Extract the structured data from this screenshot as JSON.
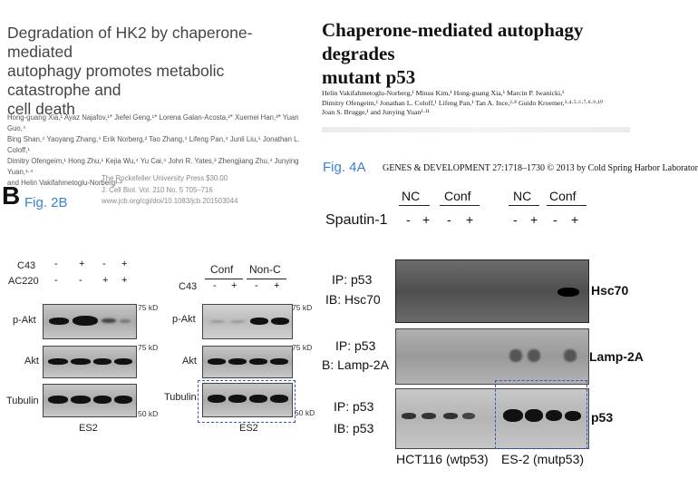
{
  "left_paper": {
    "title_lines": [
      "Degradation of HK2 by chaperone-mediated",
      "autophagy promotes metabolic catastrophe and",
      "cell death"
    ],
    "author_lines": [
      "Hong-guang Xia,¹ Ayaz Najafov,¹* Jiefei Geng,¹* Lorena Galan-Acosta,²* Xuemei Han,³* Yuan Guo,⁴",
      "Bing Shan,⁴ Yaoyang Zhang,⁴ Erik Norberg,² Tao Zhang,⁴ Lifeng Pan,⁴ Junli Liu,⁵ Jonathan L. Coloff,¹",
      "Dimitry Ofengeim,¹ Hong Zhu,¹ Kejia Wu,⁴ Yu Cai,⁴ John R. Yates,³ Zhengjiang Zhu,⁴ Junying Yuan,¹·⁴",
      "and Helin Vakifahmetoglu-Norberg¹·²"
    ],
    "press_lines": [
      "The Rockefeller University Press  $30.00",
      "J. Cell Biol. Vol. 210 No. 5   705–716",
      "www.jcb.org/cgi/doi/10.1083/jcb.201503044"
    ]
  },
  "right_paper": {
    "title_lines": [
      "Chaperone-mediated autophagy degrades",
      "mutant p53"
    ],
    "author_lines": [
      "Helin Vakifahmetoglu-Norberg,¹ Minsu Kim,¹ Hong-guang Xia,¹ Marcin P. Iwanicki,¹",
      "Dimitry Ofengeim,¹ Jonathan L. Coloff,¹ Lifeng Pan,¹ Tan A. Ince,²·⁸ Guido Kroemer,³·⁴·⁵·⁶·⁷·⁸·⁹·¹⁰",
      "Joan S. Brugge,¹ and Junying Yuan¹·¹¹"
    ],
    "journal": "GENES & DEVELOPMENT 27:1718–1730 © 2013 by Cold Spring Harbor Laborator"
  },
  "panel_b": {
    "letter": "B",
    "fig_label": "Fig. 2B",
    "left_blot": {
      "conditions": [
        {
          "name": "C43",
          "signs": [
            "-",
            "+",
            "-",
            "+"
          ]
        },
        {
          "name": "AC220",
          "signs": [
            "-",
            "-",
            "+",
            "+"
          ]
        }
      ],
      "rows": [
        {
          "label": "p-Akt",
          "kd": "75 kD"
        },
        {
          "label": "Akt",
          "kd": "75 kD"
        },
        {
          "label": "Tubulin",
          "kd": "50 kD"
        }
      ],
      "cell_line": "ES2"
    },
    "right_blot": {
      "groups": [
        "Conf",
        "Non-C"
      ],
      "condition": {
        "name": "C43",
        "signs": [
          "-",
          "+",
          "-",
          "+"
        ]
      },
      "rows": [
        {
          "label": "p-Akt",
          "kd": "75 kD"
        },
        {
          "label": "Akt",
          "kd": "75 kD"
        },
        {
          "label": "Tubulin",
          "kd": "50 kD"
        }
      ],
      "cell_line": "ES2"
    }
  },
  "panel_4a": {
    "fig_label": "Fig. 4A",
    "groups": [
      "NC",
      "Conf",
      "NC",
      "Conf"
    ],
    "treatment": {
      "name": "Spautin-1",
      "signs": [
        "-",
        "+",
        "-",
        "+",
        "-",
        "+",
        "-",
        "+"
      ]
    },
    "rows": [
      {
        "ip": "IP: p53",
        "ib": "IB: Hsc70",
        "target": "Hsc70"
      },
      {
        "ip": "IP: p53",
        "ib": "B: Lamp-2A",
        "target": "Lamp-2A"
      },
      {
        "ip": "IP: p53",
        "ib": "IB: p53",
        "target": "p53"
      }
    ],
    "cell_lines": [
      "HCT116 (wtp53)",
      "ES-2 (mutp53)"
    ]
  },
  "colors": {
    "annotation_blue": "#3d7fd4",
    "dashed_box": "#3a55c8"
  }
}
